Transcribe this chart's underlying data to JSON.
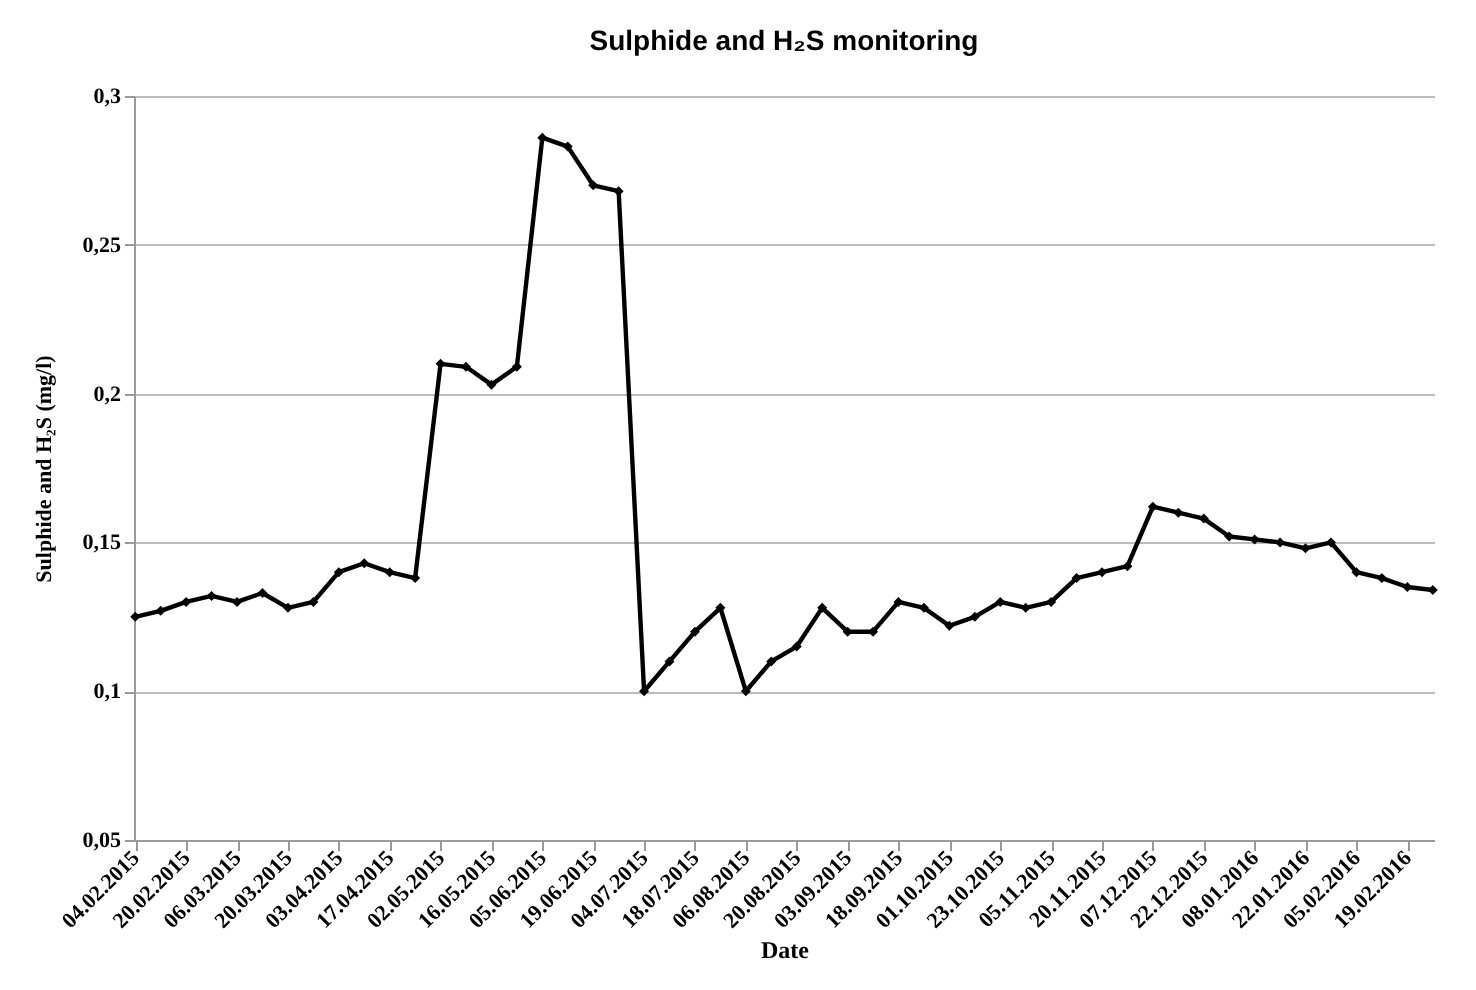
{
  "chart_data": {
    "type": "line",
    "title": "Sulphide and H₂S monitoring",
    "xlabel": "Date",
    "ylabel": "Sulphide and H₂S (mg/l)",
    "categories": [
      "04.02.2015",
      null,
      "20.02.2015",
      null,
      "06.03.2015",
      null,
      "20.03.2015",
      null,
      "03.04.2015",
      null,
      "17.04.2015",
      null,
      "02.05.2015",
      null,
      "16.05.2015",
      null,
      "05.06.2015",
      null,
      "19.06.2015",
      null,
      "04.07.2015",
      null,
      "18.07.2015",
      null,
      "06.08.2015",
      null,
      "20.08.2015",
      null,
      "03.09.2015",
      null,
      "18.09.2015",
      null,
      "01.10.2015",
      null,
      "23.10.2015",
      null,
      "05.11.2015",
      null,
      "20.11.2015",
      null,
      "07.12.2015",
      null,
      "22.12.2015",
      null,
      "08.01.2016",
      null,
      "22.01.2016",
      null,
      "05.02.2016",
      null,
      "19.02.2016",
      null
    ],
    "series": [
      {
        "color": "#000000",
        "values": [
          0.125,
          0.127,
          0.13,
          0.132,
          0.13,
          0.133,
          0.128,
          0.13,
          0.14,
          0.143,
          0.14,
          0.138,
          0.21,
          0.209,
          0.203,
          0.209,
          0.286,
          0.283,
          0.27,
          0.268,
          0.1,
          0.11,
          0.12,
          0.128,
          0.1,
          0.11,
          0.115,
          0.128,
          0.12,
          0.12,
          0.13,
          0.128,
          0.122,
          0.125,
          0.13,
          0.128,
          0.13,
          0.138,
          0.14,
          0.142,
          0.162,
          0.16,
          0.158,
          0.152,
          0.151,
          0.15,
          0.148,
          0.15,
          0.14,
          0.138,
          0.135,
          0.134
        ]
      }
    ],
    "ylim": [
      0.05,
      0.3
    ],
    "yticks": [
      {
        "value": 0.05,
        "label": "0,05"
      },
      {
        "value": 0.1,
        "label": "0,1"
      },
      {
        "value": 0.15,
        "label": "0,15"
      },
      {
        "value": 0.2,
        "label": "0,2"
      },
      {
        "value": 0.25,
        "label": "0,25"
      },
      {
        "value": 0.3,
        "label": "0,3"
      }
    ],
    "grid": "y",
    "marker": "diamond",
    "line_style": "solid"
  }
}
